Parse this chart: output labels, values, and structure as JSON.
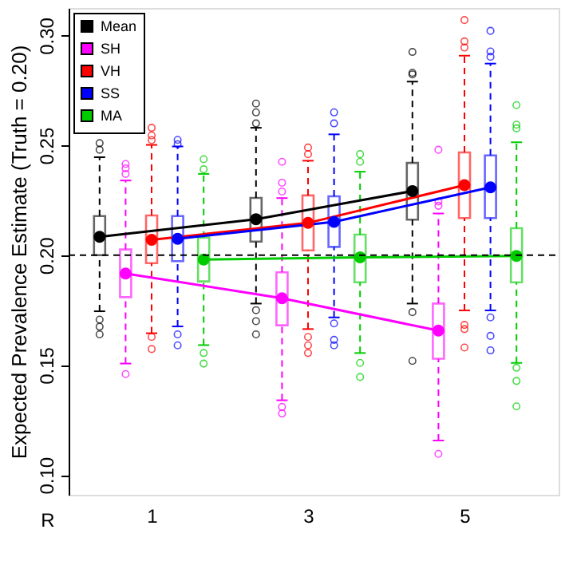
{
  "chart_data": {
    "type": "box",
    "xlabel": "R",
    "ylabel": "Expected Prevalence Estimate (Truth = 0.20)",
    "categories": [
      "1",
      "3",
      "5"
    ],
    "ylim": [
      0.091,
      0.3125
    ],
    "yticks": [
      {
        "value": 0.1,
        "label": "0.10"
      },
      {
        "value": 0.15,
        "label": "0.15"
      },
      {
        "value": 0.2,
        "label": "0.20"
      },
      {
        "value": 0.25,
        "label": "0.25"
      },
      {
        "value": 0.3,
        "label": "0.30"
      }
    ],
    "legend": "top left",
    "ref_lines": [
      {
        "axis": "y",
        "value": 0.2,
        "color": "#000000",
        "line_style": "dashed"
      }
    ],
    "series": [
      {
        "name": "Mean",
        "color": "#000000",
        "boxes": [
          {
            "low": 0.1745,
            "q1": 0.2,
            "median": 0.2084,
            "q3": 0.2178,
            "high": 0.2446,
            "mean": 0.2084,
            "outliers": [
              0.1707,
              0.1675,
              0.164,
              0.248,
              0.251
            ]
          },
          {
            "low": 0.178,
            "q1": 0.2062,
            "median": 0.2164,
            "q3": 0.2261,
            "high": 0.258,
            "mean": 0.2164,
            "outliers": [
              0.175,
              0.17,
              0.164,
              0.26,
              0.265,
              0.269
            ]
          },
          {
            "low": 0.178,
            "q1": 0.2162,
            "median": 0.2292,
            "q3": 0.242,
            "high": 0.279,
            "mean": 0.2292,
            "outliers": [
              0.1741,
              0.1519,
              0.2823,
              0.283,
              0.2925
            ]
          }
        ]
      },
      {
        "name": "SH",
        "color": "#ff00ff",
        "boxes": [
          {
            "low": 0.1507,
            "q1": 0.1809,
            "median": 0.1917,
            "q3": 0.2026,
            "high": 0.234,
            "mean": 0.1917,
            "outliers": [
              0.1459,
              0.237,
              0.2395,
              0.2415
            ]
          },
          {
            "low": 0.134,
            "q1": 0.1681,
            "median": 0.1804,
            "q3": 0.1922,
            "high": 0.226,
            "mean": 0.1804,
            "outliers": [
              0.131,
              0.128,
              0.229,
              0.233,
              0.2425
            ]
          },
          {
            "low": 0.1157,
            "q1": 0.1529,
            "median": 0.1657,
            "q3": 0.178,
            "high": 0.219,
            "mean": 0.1657,
            "outliers": [
              0.1096,
              0.2225,
              0.2245,
              0.248
            ]
          }
        ]
      },
      {
        "name": "VH",
        "color": "#ff0000",
        "boxes": [
          {
            "low": 0.1645,
            "q1": 0.1964,
            "median": 0.207,
            "q3": 0.2181,
            "high": 0.2502,
            "mean": 0.207,
            "outliers": [
              0.1628,
              0.1573,
              0.2524,
              0.2545,
              0.258
            ]
          },
          {
            "low": 0.1664,
            "q1": 0.2022,
            "median": 0.2147,
            "q3": 0.2272,
            "high": 0.243,
            "mean": 0.2147,
            "outliers": [
              0.1628,
              0.159,
              0.1555,
              0.246,
              0.249
            ]
          },
          {
            "low": 0.1749,
            "q1": 0.2169,
            "median": 0.2319,
            "q3": 0.2468,
            "high": 0.2908,
            "mean": 0.2319,
            "outliers": [
              0.1683,
              0.1664,
              0.158,
              0.2945,
              0.2973,
              0.307
            ]
          }
        ]
      },
      {
        "name": "SS",
        "color": "#0000ff",
        "boxes": [
          {
            "low": 0.1676,
            "q1": 0.1973,
            "median": 0.2075,
            "q3": 0.2178,
            "high": 0.2495,
            "mean": 0.2075,
            "outliers": [
              0.164,
              0.159,
              0.2505,
              0.2525
            ]
          },
          {
            "low": 0.1717,
            "q1": 0.2038,
            "median": 0.2152,
            "q3": 0.2268,
            "high": 0.255,
            "mean": 0.2152,
            "outliers": [
              0.169,
              0.1615,
              0.159,
              0.26,
              0.265
            ]
          },
          {
            "low": 0.1749,
            "q1": 0.2169,
            "median": 0.2309,
            "q3": 0.2454,
            "high": 0.2872,
            "mean": 0.2309,
            "outliers": [
              0.1717,
              0.1633,
              0.1567,
              0.2903,
              0.2927,
              0.3021
            ]
          }
        ]
      },
      {
        "name": "MA",
        "color": "#00cc00",
        "boxes": [
          {
            "low": 0.1591,
            "q1": 0.1881,
            "median": 0.198,
            "q3": 0.208,
            "high": 0.237,
            "mean": 0.198,
            "outliers": [
              0.1555,
              0.1507,
              0.2391,
              0.2437
            ]
          },
          {
            "low": 0.1555,
            "q1": 0.1877,
            "median": 0.199,
            "q3": 0.2094,
            "high": 0.238,
            "mean": 0.199,
            "outliers": [
              0.151,
              0.1446,
              0.2425,
              0.246
            ]
          },
          {
            "low": 0.151,
            "q1": 0.1877,
            "median": 0.1997,
            "q3": 0.2123,
            "high": 0.2514,
            "mean": 0.1997,
            "outliers": [
              0.1488,
              0.1428,
              0.1312,
              0.2577,
              0.2594,
              0.2683
            ]
          }
        ]
      },
      {
        "type": "line",
        "color": "#000000",
        "line_style": "solid",
        "values": [
          0.2084,
          0.2164,
          0.2292
        ]
      },
      {
        "type": "line",
        "color": "#ff00ff",
        "line_style": "solid",
        "values": [
          0.1917,
          0.1804,
          0.1657
        ]
      },
      {
        "type": "line",
        "color": "#ff0000",
        "line_style": "solid",
        "values": [
          0.207,
          0.2147,
          0.2319
        ]
      },
      {
        "type": "line",
        "color": "#0000ff",
        "line_style": "solid",
        "values": [
          0.2075,
          0.2152,
          0.2309
        ]
      },
      {
        "type": "line",
        "color": "#00cc00",
        "line_style": "solid",
        "values": [
          0.198,
          0.199,
          0.1997
        ]
      }
    ]
  }
}
